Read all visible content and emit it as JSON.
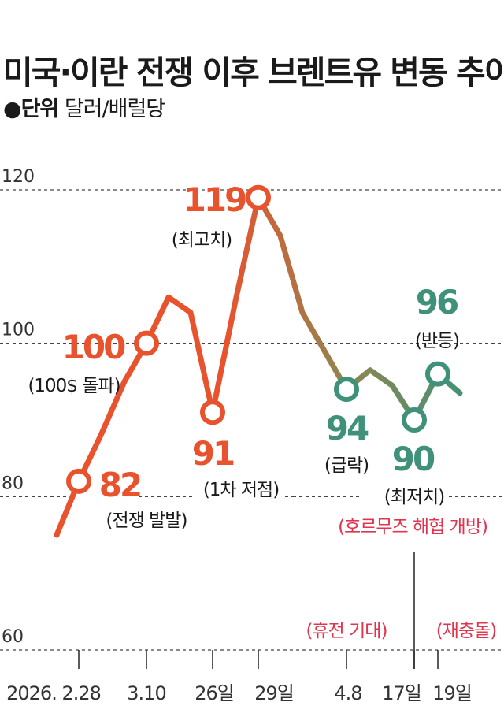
{
  "title": "미국·이란 전쟁 이후 브렌트유 변동 추이",
  "unit": {
    "bullet": "●",
    "label": "단위",
    "value": "달러/배럴당"
  },
  "colors": {
    "up": "#e8532e",
    "down": "#3f9179",
    "event": "#e0344f",
    "grid": "#444444"
  },
  "chart_data": {
    "type": "line",
    "title": "미국·이란 전쟁 이후 브렌트유 변동 추이",
    "ylabel": "달러/배럴당",
    "ylim": [
      60,
      120
    ],
    "yticks": [
      {
        "value": 120,
        "label": "120"
      },
      {
        "value": 100,
        "label": "100"
      },
      {
        "value": 80,
        "label": "80"
      },
      {
        "value": 60,
        "label": "60"
      }
    ],
    "xticks": [
      "2026. 2.28",
      "3.10",
      "26일",
      "29일",
      "4.8",
      "17일",
      "19일"
    ],
    "grid": true,
    "series": [
      {
        "values": [
          75,
          82,
          88,
          95,
          100,
          106,
          104,
          91,
          106,
          119,
          114,
          104,
          99,
          94,
          96.5,
          94.5,
          90,
          96,
          93.5
        ]
      }
    ],
    "highlights": [
      {
        "index": 1,
        "value_label": "82",
        "note": "(전쟁 발발)",
        "trend": "up"
      },
      {
        "index": 4,
        "value_label": "100",
        "note": "(100$ 돌파)",
        "trend": "up"
      },
      {
        "index": 7,
        "value_label": "91",
        "note": "(1차 저점)",
        "trend": "up"
      },
      {
        "index": 9,
        "value_label": "119",
        "note": "(최고치)",
        "trend": "up"
      },
      {
        "index": 13,
        "value_label": "94",
        "note": "(급락)",
        "trend": "down"
      },
      {
        "index": 16,
        "value_label": "90",
        "note": "(최저치)",
        "trend": "down"
      },
      {
        "index": 17,
        "value_label": "96",
        "note": "(반등)",
        "trend": "down"
      }
    ],
    "events": [
      {
        "label": "(호르무즈 해협 개방)",
        "at": "17일"
      },
      {
        "label": "(휴전 기대)",
        "at": "4.8"
      },
      {
        "label": "(재충돌)",
        "at": "19일"
      }
    ]
  }
}
